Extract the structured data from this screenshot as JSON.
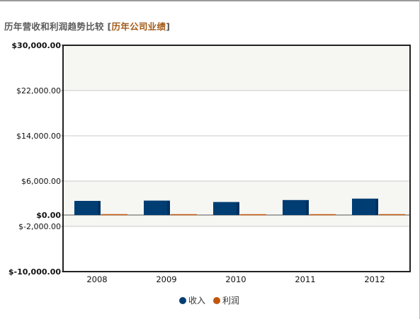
{
  "header": {
    "title": "历年营收和利润趋势比较",
    "bracket_open": "[",
    "link_text": "历年公司业绩",
    "bracket_close": "]"
  },
  "colors": {
    "revenue": "#003d73",
    "profit": "#c0560d",
    "band": "#f6f6f2",
    "title_link": "#a35a17"
  },
  "chart_data": {
    "type": "bar",
    "categories": [
      "2008",
      "2009",
      "2010",
      "2011",
      "2012"
    ],
    "series": [
      {
        "name": "收入",
        "values": [
          2500,
          2550,
          2300,
          2650,
          2900
        ]
      },
      {
        "name": "利润",
        "values": [
          30,
          25,
          20,
          25,
          30
        ]
      }
    ],
    "ylim": [
      -10000,
      30000
    ],
    "yticks": [
      {
        "value": 30000,
        "label": "$30,000.00",
        "bold": true
      },
      {
        "value": 22000,
        "label": "$22,000.00",
        "bold": false
      },
      {
        "value": 14000,
        "label": "$14,000.00",
        "bold": false
      },
      {
        "value": 6000,
        "label": "$6,000.00",
        "bold": false
      },
      {
        "value": 0,
        "label": "$0.00",
        "bold": true
      },
      {
        "value": -2000,
        "label": "$-2,000.00",
        "bold": false
      },
      {
        "value": -10000,
        "label": "$-10,000.00",
        "bold": true
      }
    ],
    "bands": [
      [
        22000,
        30000
      ],
      [
        -2000,
        6000
      ]
    ],
    "legend_position": "bottom-center",
    "title": "",
    "xlabel": "",
    "ylabel": ""
  }
}
